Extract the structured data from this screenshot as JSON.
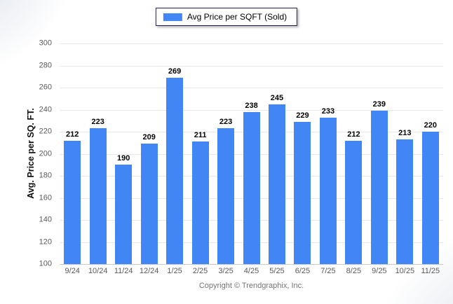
{
  "chart_data": {
    "type": "bar",
    "categories": [
      "9/24",
      "10/24",
      "11/24",
      "12/24",
      "1/25",
      "2/25",
      "3/25",
      "4/25",
      "5/25",
      "6/25",
      "7/25",
      "8/25",
      "9/25",
      "10/25",
      "11/25"
    ],
    "values": [
      212,
      223,
      190,
      209,
      269,
      211,
      223,
      238,
      245,
      229,
      233,
      212,
      239,
      213,
      220
    ],
    "legend": [
      "Avg Price per SQFT (Sold)"
    ],
    "ylabel": "Avg. Price per SQ. FT.",
    "ylim": [
      100,
      300
    ],
    "ytick_step": 20,
    "grid": true,
    "legend_position": "top-center",
    "bar_color": "#4285F4"
  },
  "footer": {
    "copyright": "Copyright © Trendgraphix, Inc."
  }
}
